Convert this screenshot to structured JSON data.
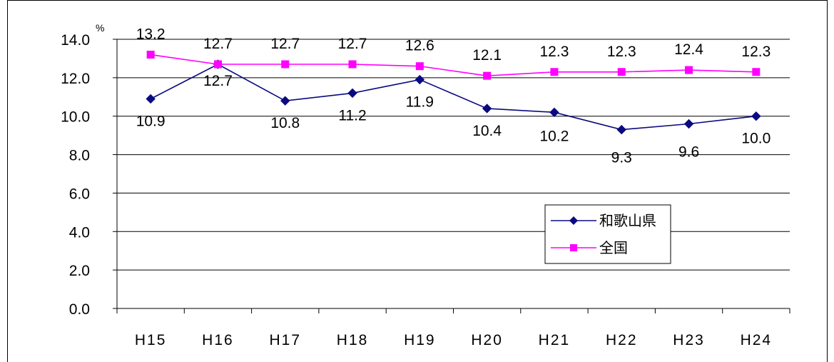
{
  "chart_data": {
    "type": "line",
    "unit": "%",
    "categories": [
      "H15",
      "H16",
      "H17",
      "H18",
      "H19",
      "H20",
      "H21",
      "H22",
      "H23",
      "H24"
    ],
    "ylim": [
      0,
      14
    ],
    "yticks": [
      "0.0",
      "2.0",
      "4.0",
      "6.0",
      "8.0",
      "10.0",
      "12.0",
      "14.0"
    ],
    "grid": true,
    "legend_position": "right",
    "series": [
      {
        "name": "和歌山県",
        "color": "#0a0a80",
        "marker": "diamond",
        "values": [
          10.9,
          12.7,
          10.8,
          11.2,
          11.9,
          10.4,
          10.2,
          9.3,
          9.6,
          10.0
        ],
        "labels": [
          "10.9",
          "12.7",
          "10.8",
          "11.2",
          "11.9",
          "10.4",
          "10.2",
          "9.3",
          "9.6",
          "10.0"
        ]
      },
      {
        "name": "全国",
        "color": "#ff00ff",
        "marker": "square",
        "values": [
          13.2,
          12.7,
          12.7,
          12.7,
          12.6,
          12.1,
          12.3,
          12.3,
          12.4,
          12.3
        ],
        "labels": [
          "13.2",
          "12.7",
          "12.7",
          "12.7",
          "12.6",
          "12.1",
          "12.3",
          "12.3",
          "12.4",
          "12.3"
        ]
      }
    ]
  }
}
